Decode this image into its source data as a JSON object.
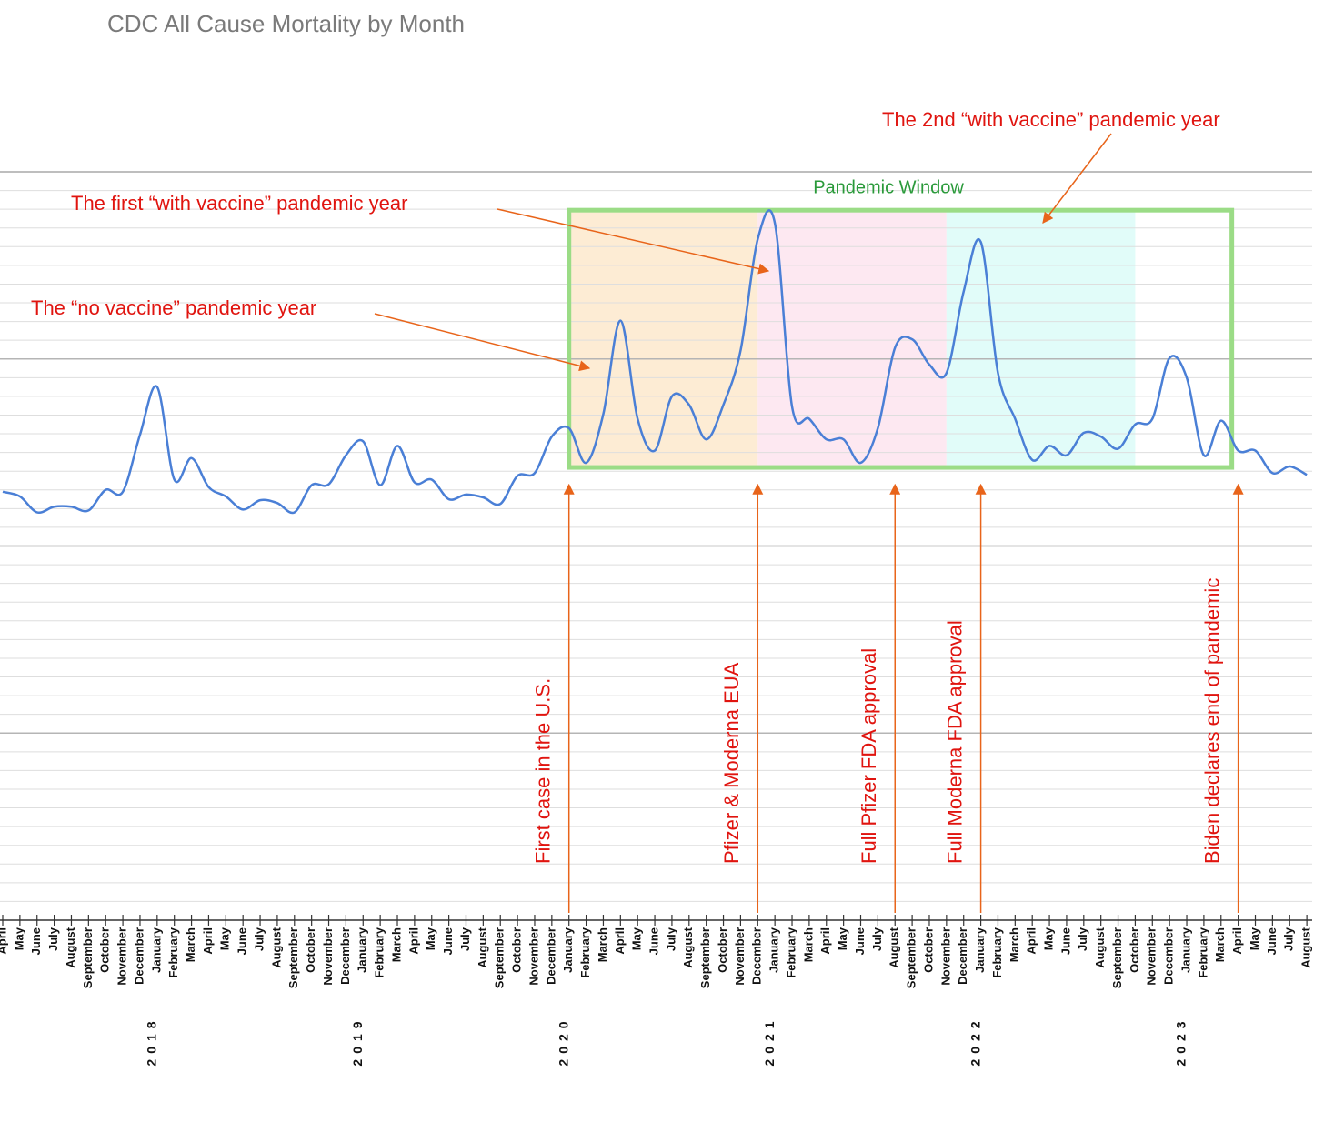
{
  "chart_data": {
    "type": "line",
    "title": "CDC All Cause Mortality by Month",
    "categories": [
      "April",
      "May",
      "June",
      "July",
      "August",
      "September",
      "October",
      "November",
      "December",
      "January",
      "February",
      "March",
      "April",
      "May",
      "June",
      "July",
      "August",
      "September",
      "October",
      "November",
      "December",
      "January",
      "February",
      "March",
      "April",
      "May",
      "June",
      "July",
      "August",
      "September",
      "October",
      "November",
      "December",
      "January",
      "February",
      "March",
      "April",
      "May",
      "June",
      "July",
      "August",
      "September",
      "October",
      "November",
      "December",
      "January",
      "February",
      "March",
      "April",
      "May",
      "June",
      "July",
      "August",
      "September",
      "October",
      "November",
      "December",
      "January",
      "February",
      "March",
      "April",
      "May",
      "June",
      "July",
      "August",
      "September",
      "October",
      "November",
      "December",
      "January",
      "February",
      "March",
      "April",
      "May",
      "June",
      "July",
      "August"
    ],
    "values": [
      45.8,
      45.3,
      43.6,
      44.2,
      44.2,
      43.8,
      46.0,
      45.8,
      51.9,
      57.0,
      47.1,
      49.4,
      46.3,
      45.3,
      43.9,
      44.9,
      44.6,
      43.6,
      46.5,
      46.6,
      49.7,
      51.2,
      46.5,
      50.7,
      46.8,
      47.1,
      45.0,
      45.5,
      45.2,
      44.5,
      47.5,
      47.8,
      51.7,
      52.6,
      48.9,
      54.1,
      64.1,
      53.6,
      50.2,
      56.0,
      55.1,
      51.4,
      55.1,
      60.9,
      72.8,
      74.5,
      54.9,
      53.6,
      51.4,
      51.4,
      48.9,
      52.6,
      61.2,
      62.1,
      59.4,
      58.5,
      67.2,
      72.5,
      58.5,
      53.6,
      49.2,
      50.7,
      49.7,
      52.1,
      51.7,
      50.4,
      53.0,
      53.6,
      60.1,
      58.0,
      49.7,
      53.4,
      50.2,
      50.2,
      47.8,
      48.5,
      47.6
    ],
    "color": "#4a7fd6",
    "year_labels": [
      {
        "text": "2018",
        "at": 9
      },
      {
        "text": "2019",
        "at": 21
      },
      {
        "text": "2020",
        "at": 33
      },
      {
        "text": "2021",
        "at": 45
      },
      {
        "text": "2022",
        "at": 57
      },
      {
        "text": "2023",
        "at": 69
      }
    ],
    "ylim": [
      0,
      80
    ],
    "yticks": [
      0,
      2,
      4,
      6,
      8,
      10,
      12,
      14,
      16,
      18,
      20,
      22,
      24,
      26,
      28,
      30,
      32,
      34,
      36,
      38,
      40,
      42,
      44,
      46,
      48,
      50,
      52,
      54,
      56,
      58,
      60,
      62,
      64,
      66,
      68,
      70,
      72,
      74,
      76,
      78,
      80
    ],
    "major_yticks": [
      20,
      40,
      60,
      80
    ],
    "grid": true,
    "window": {
      "label": "Pandemic Window",
      "from": 33,
      "to": 72,
      "ymin": 48.4,
      "ymax": 75.9,
      "color": "#9bdc86"
    },
    "regions": [
      {
        "from": 33,
        "to": 44,
        "color": "#fde9cc"
      },
      {
        "from": 44,
        "to": 55,
        "color": "#fde4ef"
      },
      {
        "from": 55,
        "to": 66,
        "color": "#dcfbf8"
      }
    ],
    "events": [
      {
        "label": "First case in the U.S.",
        "at": 33
      },
      {
        "label": "Pfizer & Moderna EUA",
        "at": 44
      },
      {
        "label": "Full Pfizer FDA approval",
        "at": 52
      },
      {
        "label": "Full Moderna FDA approval",
        "at": 57
      },
      {
        "label": "Biden declares end of pandemic",
        "at": 72
      }
    ],
    "annotations": [
      "The “no vaccine” pandemic year",
      "The first “with vaccine” pandemic year",
      "The 2nd “with vaccine” pandemic year"
    ]
  }
}
